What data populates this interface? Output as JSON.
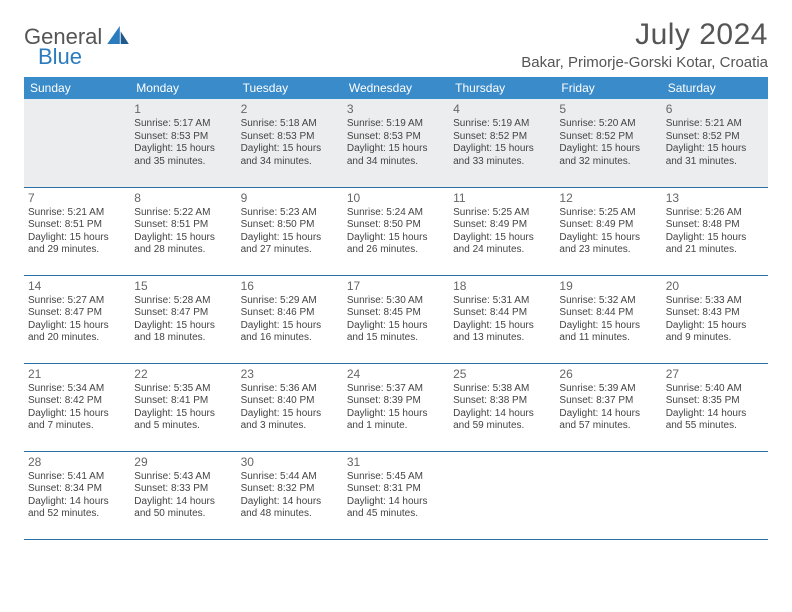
{
  "logo": {
    "text1": "General",
    "text2": "Blue"
  },
  "title": "July 2024",
  "location": "Bakar, Primorje-Gorski Kotar, Croatia",
  "colors": {
    "header_bg": "#3a8bc9",
    "header_text": "#ffffff",
    "rule": "#2b6fa5",
    "body_text": "#444444",
    "title_text": "#555555",
    "logo_blue": "#2b7bbf",
    "first_row_bg": "#ecedee"
  },
  "weekdays": [
    "Sunday",
    "Monday",
    "Tuesday",
    "Wednesday",
    "Thursday",
    "Friday",
    "Saturday"
  ],
  "weeks": [
    [
      null,
      {
        "n": "1",
        "sr": "5:17 AM",
        "ss": "8:53 PM",
        "dl": "15 hours and 35 minutes."
      },
      {
        "n": "2",
        "sr": "5:18 AM",
        "ss": "8:53 PM",
        "dl": "15 hours and 34 minutes."
      },
      {
        "n": "3",
        "sr": "5:19 AM",
        "ss": "8:53 PM",
        "dl": "15 hours and 34 minutes."
      },
      {
        "n": "4",
        "sr": "5:19 AM",
        "ss": "8:52 PM",
        "dl": "15 hours and 33 minutes."
      },
      {
        "n": "5",
        "sr": "5:20 AM",
        "ss": "8:52 PM",
        "dl": "15 hours and 32 minutes."
      },
      {
        "n": "6",
        "sr": "5:21 AM",
        "ss": "8:52 PM",
        "dl": "15 hours and 31 minutes."
      }
    ],
    [
      {
        "n": "7",
        "sr": "5:21 AM",
        "ss": "8:51 PM",
        "dl": "15 hours and 29 minutes."
      },
      {
        "n": "8",
        "sr": "5:22 AM",
        "ss": "8:51 PM",
        "dl": "15 hours and 28 minutes."
      },
      {
        "n": "9",
        "sr": "5:23 AM",
        "ss": "8:50 PM",
        "dl": "15 hours and 27 minutes."
      },
      {
        "n": "10",
        "sr": "5:24 AM",
        "ss": "8:50 PM",
        "dl": "15 hours and 26 minutes."
      },
      {
        "n": "11",
        "sr": "5:25 AM",
        "ss": "8:49 PM",
        "dl": "15 hours and 24 minutes."
      },
      {
        "n": "12",
        "sr": "5:25 AM",
        "ss": "8:49 PM",
        "dl": "15 hours and 23 minutes."
      },
      {
        "n": "13",
        "sr": "5:26 AM",
        "ss": "8:48 PM",
        "dl": "15 hours and 21 minutes."
      }
    ],
    [
      {
        "n": "14",
        "sr": "5:27 AM",
        "ss": "8:47 PM",
        "dl": "15 hours and 20 minutes."
      },
      {
        "n": "15",
        "sr": "5:28 AM",
        "ss": "8:47 PM",
        "dl": "15 hours and 18 minutes."
      },
      {
        "n": "16",
        "sr": "5:29 AM",
        "ss": "8:46 PM",
        "dl": "15 hours and 16 minutes."
      },
      {
        "n": "17",
        "sr": "5:30 AM",
        "ss": "8:45 PM",
        "dl": "15 hours and 15 minutes."
      },
      {
        "n": "18",
        "sr": "5:31 AM",
        "ss": "8:44 PM",
        "dl": "15 hours and 13 minutes."
      },
      {
        "n": "19",
        "sr": "5:32 AM",
        "ss": "8:44 PM",
        "dl": "15 hours and 11 minutes."
      },
      {
        "n": "20",
        "sr": "5:33 AM",
        "ss": "8:43 PM",
        "dl": "15 hours and 9 minutes."
      }
    ],
    [
      {
        "n": "21",
        "sr": "5:34 AM",
        "ss": "8:42 PM",
        "dl": "15 hours and 7 minutes."
      },
      {
        "n": "22",
        "sr": "5:35 AM",
        "ss": "8:41 PM",
        "dl": "15 hours and 5 minutes."
      },
      {
        "n": "23",
        "sr": "5:36 AM",
        "ss": "8:40 PM",
        "dl": "15 hours and 3 minutes."
      },
      {
        "n": "24",
        "sr": "5:37 AM",
        "ss": "8:39 PM",
        "dl": "15 hours and 1 minute."
      },
      {
        "n": "25",
        "sr": "5:38 AM",
        "ss": "8:38 PM",
        "dl": "14 hours and 59 minutes."
      },
      {
        "n": "26",
        "sr": "5:39 AM",
        "ss": "8:37 PM",
        "dl": "14 hours and 57 minutes."
      },
      {
        "n": "27",
        "sr": "5:40 AM",
        "ss": "8:35 PM",
        "dl": "14 hours and 55 minutes."
      }
    ],
    [
      {
        "n": "28",
        "sr": "5:41 AM",
        "ss": "8:34 PM",
        "dl": "14 hours and 52 minutes."
      },
      {
        "n": "29",
        "sr": "5:43 AM",
        "ss": "8:33 PM",
        "dl": "14 hours and 50 minutes."
      },
      {
        "n": "30",
        "sr": "5:44 AM",
        "ss": "8:32 PM",
        "dl": "14 hours and 48 minutes."
      },
      {
        "n": "31",
        "sr": "5:45 AM",
        "ss": "8:31 PM",
        "dl": "14 hours and 45 minutes."
      },
      null,
      null,
      null
    ]
  ],
  "labels": {
    "sunrise": "Sunrise:",
    "sunset": "Sunset:",
    "daylight": "Daylight:"
  }
}
